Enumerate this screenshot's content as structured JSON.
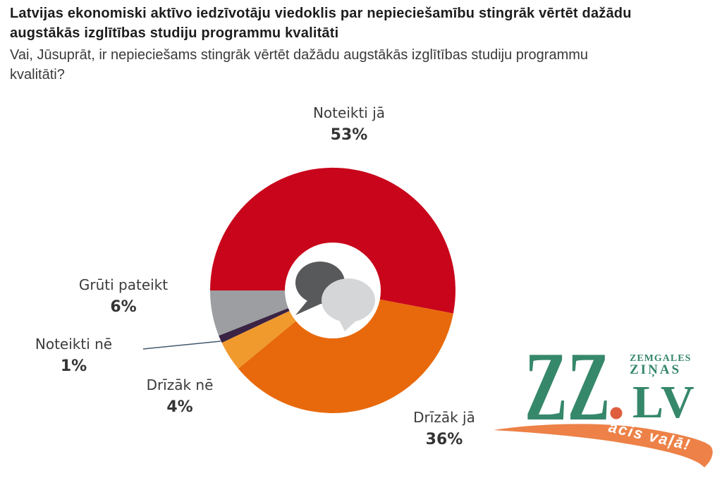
{
  "header": {
    "title": "Latvijas ekonomiski aktīvo iedzīvotāju viedoklis par nepieciešamību stingrāk vērtēt dažādu augstākās izglītības studiju programmu kvalitāti",
    "subtitle": "Vai, Jūsuprāt, ir nepieciešams stingrāk vērtēt dažādu augstākās izglītības studiju programmu kvalitāti?"
  },
  "chart_data": {
    "type": "pie",
    "style": "donut",
    "start_angle_deg": -90,
    "direction": "clockwise",
    "title": "Latvijas ekonomiski aktīvo iedzīvotāju viedoklis par nepieciešamību stingrāk vērtēt dažādu augstākās izglītības studiju programmu kvalitāti",
    "categories": [
      "Noteikti jā",
      "Drīzāk jā",
      "Drīzāk nē",
      "Noteikti nē",
      "Grūti pateikt"
    ],
    "values": [
      53,
      36,
      4,
      1,
      6
    ],
    "slices": [
      {
        "label": "Noteikti jā",
        "pct": 53,
        "pct_text": "53%",
        "color": "#C9051B"
      },
      {
        "label": "Drīzāk jā",
        "pct": 36,
        "pct_text": "36%",
        "color": "#E8690B"
      },
      {
        "label": "Drīzāk nē",
        "pct": 4,
        "pct_text": "4%",
        "color": "#F09A2E"
      },
      {
        "label": "Noteikti nē",
        "pct": 1,
        "pct_text": "1%",
        "color": "#3A2344"
      },
      {
        "label": "Grūti pateikt",
        "pct": 6,
        "pct_text": "6%",
        "color": "#9C9EA2"
      }
    ],
    "center_icon": "speech-bubbles",
    "legend_position": "labels-around-chart"
  },
  "icon_colors": {
    "bubble_dark": "#58595B",
    "bubble_light": "#D5D6D8",
    "leader_line": "#41586E"
  },
  "logo": {
    "zz": "ZZ",
    "paper_line1": "ZEMGALES",
    "paper_line2": "ZIŅAS",
    "lv": "LV",
    "tagline": "acis vaļā!",
    "green": "#36886A",
    "dot_color": "#DF5E3E",
    "orange": "#ED8147",
    "tagline_color": "#FFFFFF"
  }
}
